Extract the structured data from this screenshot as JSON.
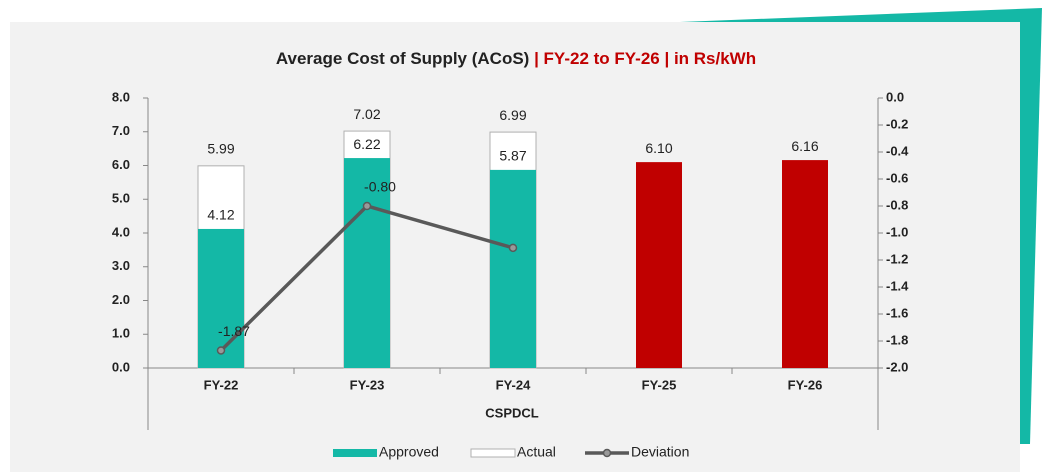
{
  "chart_data": {
    "type": "bar",
    "title": "Average Cost of Supply (ACoS)",
    "subtitle": "| FY-22 to FY-26  | in Rs/kWh",
    "x_label": "CSPDCL",
    "categories": [
      "FY-22",
      "FY-23",
      "FY-24",
      "FY-25",
      "FY-26"
    ],
    "series": [
      {
        "name": "Approved",
        "color": "#14b8a6",
        "point_colors": [
          "#14b8a6",
          "#14b8a6",
          "#14b8a6",
          "#c00000",
          "#c00000"
        ],
        "values": [
          4.12,
          6.22,
          5.87,
          6.1,
          6.16
        ],
        "value_labels": [
          "4.12",
          "6.22",
          "5.87",
          "6.10",
          "6.16"
        ]
      },
      {
        "name": "Actual",
        "color": "#ffffff",
        "border": "#b0b0b0",
        "values": [
          5.99,
          7.02,
          6.99,
          null,
          null
        ],
        "value_labels": [
          "5.99",
          "7.02",
          "6.99",
          null,
          null
        ]
      },
      {
        "name": "Deviation",
        "type": "line",
        "axis": "y2",
        "color": "#595959",
        "values": [
          -1.87,
          -0.8,
          -1.11,
          null,
          null
        ],
        "value_labels": [
          "-1.87",
          "-0.80",
          null,
          null,
          null
        ]
      }
    ],
    "ylim": [
      0,
      8
    ],
    "yticks": [
      {
        "value": 0,
        "label": "0.0"
      },
      {
        "value": 1,
        "label": "1.0"
      },
      {
        "value": 2,
        "label": "2.0"
      },
      {
        "value": 3,
        "label": "3.0"
      },
      {
        "value": 4,
        "label": "4.0"
      },
      {
        "value": 5,
        "label": "5.0"
      },
      {
        "value": 6,
        "label": "6.0"
      },
      {
        "value": 7,
        "label": "7.0"
      },
      {
        "value": 8,
        "label": "8.0"
      }
    ],
    "y2lim": [
      -2,
      0
    ],
    "y2ticks": [
      {
        "value": -2,
        "label": "-2.0"
      },
      {
        "value": -1.8,
        "label": "-1.8"
      },
      {
        "value": -1.6,
        "label": "-1.6"
      },
      {
        "value": -1.4,
        "label": "-1.4"
      },
      {
        "value": -1.2,
        "label": "-1.2"
      },
      {
        "value": -1,
        "label": "-1.0"
      },
      {
        "value": -0.8,
        "label": "-0.8"
      },
      {
        "value": -0.6,
        "label": "-0.6"
      },
      {
        "value": -0.4,
        "label": "-0.4"
      },
      {
        "value": -0.2,
        "label": "-0.2"
      },
      {
        "value": 0,
        "label": "0.0"
      }
    ],
    "legend": "bottom"
  }
}
